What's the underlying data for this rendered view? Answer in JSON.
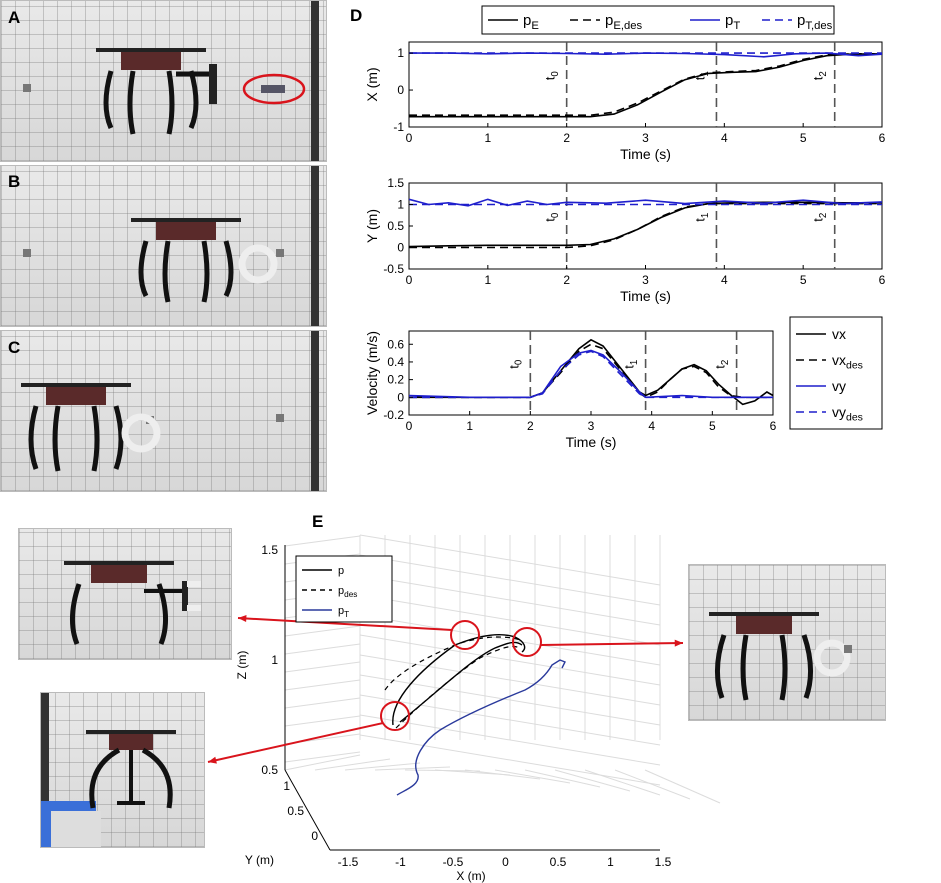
{
  "panel_labels": {
    "a": "A",
    "b": "B",
    "c": "C",
    "d": "D",
    "e": "E"
  },
  "colors": {
    "black": "#000000",
    "blue": "#1f1fcc",
    "blue3d": "#2a3a9c",
    "red": "#d9141c"
  },
  "chart_data": [
    {
      "type": "line",
      "panel": "D",
      "ylabel": "X (m)",
      "xlabel": "Time (s)",
      "xlim": [
        0,
        6
      ],
      "ylim": [
        -1,
        1.3
      ],
      "xticks": [
        "0",
        "1",
        "2",
        "3",
        "4",
        "5",
        "6"
      ],
      "yticks": [
        "-1",
        "0",
        "1"
      ],
      "legend": [
        "p_E",
        "p_E,des",
        "p_T",
        "p_T,des"
      ],
      "markers": [
        {
          "label": "t0",
          "x": 2.0
        },
        {
          "label": "t1",
          "x": 3.9
        },
        {
          "label": "t2",
          "x": 5.4
        }
      ],
      "series": [
        {
          "name": "p_E",
          "style": "solid",
          "color": "black",
          "x": [
            0,
            2,
            2.3,
            2.6,
            2.9,
            3.2,
            3.5,
            3.8,
            4.1,
            4.4,
            4.7,
            5.0,
            5.3,
            5.6,
            6.0
          ],
          "values": [
            -0.72,
            -0.72,
            -0.72,
            -0.65,
            -0.4,
            -0.05,
            0.28,
            0.45,
            0.48,
            0.5,
            0.62,
            0.8,
            0.93,
            0.97,
            0.98
          ]
        },
        {
          "name": "p_E,des",
          "style": "dashed",
          "color": "black",
          "x": [
            0,
            2,
            2.3,
            2.6,
            2.9,
            3.2,
            3.5,
            3.8,
            4.1,
            4.4,
            4.7,
            5.0,
            5.3,
            5.6,
            6.0
          ],
          "values": [
            -0.68,
            -0.68,
            -0.68,
            -0.6,
            -0.35,
            -0.02,
            0.3,
            0.47,
            0.5,
            0.53,
            0.65,
            0.83,
            0.95,
            0.98,
            0.98
          ]
        },
        {
          "name": "p_T",
          "style": "solid",
          "color": "blue",
          "x": [
            0,
            0.5,
            1,
            1.5,
            2,
            2.5,
            3,
            3.5,
            4,
            4.5,
            4.9,
            5.3,
            5.7,
            6.0
          ],
          "values": [
            1.0,
            1.0,
            0.98,
            1.0,
            0.99,
            0.97,
            1.0,
            0.99,
            0.96,
            0.9,
            0.98,
            1.0,
            0.93,
            0.97
          ]
        },
        {
          "name": "p_T,des",
          "style": "dashed",
          "color": "blue",
          "x": [
            0,
            6
          ],
          "values": [
            1.0,
            1.0
          ]
        }
      ]
    },
    {
      "type": "line",
      "panel": "D",
      "ylabel": "Y (m)",
      "xlabel": "Time (s)",
      "xlim": [
        0,
        6
      ],
      "ylim": [
        -0.5,
        1.5
      ],
      "xticks": [
        "0",
        "1",
        "2",
        "3",
        "4",
        "5",
        "6"
      ],
      "yticks": [
        "-0.5",
        "0",
        "0.5",
        "1",
        "1.5"
      ],
      "markers": [
        {
          "label": "t0",
          "x": 2.0
        },
        {
          "label": "t1",
          "x": 3.9
        },
        {
          "label": "t2",
          "x": 5.4
        }
      ],
      "series": [
        {
          "name": "p_E",
          "style": "solid",
          "color": "black",
          "x": [
            0,
            0.5,
            1,
            1.5,
            2,
            2.3,
            2.6,
            2.9,
            3.2,
            3.5,
            3.8,
            4.1,
            4.5,
            5.0,
            5.5,
            6.0
          ],
          "values": [
            0.02,
            0.04,
            0.05,
            0.05,
            0.05,
            0.07,
            0.2,
            0.42,
            0.7,
            0.92,
            1.02,
            1.04,
            1.05,
            1.05,
            1.04,
            1.04
          ]
        },
        {
          "name": "p_E,des",
          "style": "dashed",
          "color": "black",
          "x": [
            0,
            2,
            2.3,
            2.6,
            2.9,
            3.2,
            3.5,
            3.8,
            4.1,
            6.0
          ],
          "values": [
            0.0,
            0.0,
            0.04,
            0.18,
            0.42,
            0.72,
            0.94,
            1.02,
            1.02,
            1.02
          ]
        },
        {
          "name": "p_T",
          "style": "solid",
          "color": "blue",
          "x": [
            0,
            0.25,
            0.5,
            0.75,
            1.0,
            1.25,
            1.5,
            1.75,
            2.0,
            2.5,
            3.0,
            3.5,
            4.0,
            4.5,
            5.0,
            5.5,
            6.0
          ],
          "values": [
            1.12,
            1.0,
            1.04,
            0.97,
            1.12,
            0.98,
            1.08,
            1.0,
            1.05,
            1.03,
            1.1,
            1.02,
            1.08,
            1.03,
            1.1,
            1.02,
            1.06
          ]
        },
        {
          "name": "p_T,des",
          "style": "dashed",
          "color": "blue",
          "x": [
            0,
            6
          ],
          "values": [
            1.0,
            1.0
          ]
        }
      ]
    },
    {
      "type": "line",
      "panel": "D",
      "ylabel": "Velocity (m/s)",
      "xlabel": "Time (s)",
      "xlim": [
        0,
        6
      ],
      "ylim": [
        -0.2,
        0.75
      ],
      "xticks": [
        "0",
        "1",
        "2",
        "3",
        "4",
        "5",
        "6"
      ],
      "yticks": [
        "-0.2",
        "0",
        "0.2",
        "0.4",
        "0.6"
      ],
      "legend": [
        "vx",
        "vx_des",
        "vy",
        "vy_des"
      ],
      "markers": [
        {
          "label": "t0",
          "x": 2.0
        },
        {
          "label": "t1",
          "x": 3.9
        },
        {
          "label": "t2",
          "x": 5.4
        }
      ],
      "series": [
        {
          "name": "vx",
          "style": "solid",
          "color": "black",
          "x": [
            0,
            1,
            2,
            2.2,
            2.5,
            2.8,
            3.0,
            3.2,
            3.5,
            3.8,
            3.9,
            4.1,
            4.3,
            4.5,
            4.7,
            4.9,
            5.1,
            5.3,
            5.5,
            5.7,
            5.9,
            6.0
          ],
          "values": [
            0.0,
            0.0,
            0.0,
            0.05,
            0.3,
            0.55,
            0.65,
            0.58,
            0.32,
            0.06,
            0.02,
            0.08,
            0.2,
            0.32,
            0.37,
            0.3,
            0.15,
            0.03,
            -0.08,
            -0.04,
            0.06,
            0.02
          ]
        },
        {
          "name": "vx_des",
          "style": "dashed",
          "color": "black",
          "x": [
            0,
            2,
            2.2,
            2.5,
            2.8,
            3.0,
            3.2,
            3.5,
            3.8,
            3.9,
            4.1,
            4.3,
            4.5,
            4.7,
            4.9,
            5.1,
            5.3,
            5.5,
            6.0
          ],
          "values": [
            0.0,
            0.0,
            0.05,
            0.28,
            0.52,
            0.6,
            0.55,
            0.3,
            0.05,
            0.0,
            0.06,
            0.2,
            0.32,
            0.35,
            0.28,
            0.12,
            0.02,
            0.0,
            0.0
          ]
        },
        {
          "name": "vy",
          "style": "solid",
          "color": "blue",
          "x": [
            0,
            1,
            2,
            2.2,
            2.5,
            2.8,
            3.0,
            3.2,
            3.5,
            3.8,
            3.9,
            4.5,
            5.0,
            5.5,
            6.0
          ],
          "values": [
            0.02,
            0.0,
            0.0,
            0.05,
            0.35,
            0.5,
            0.53,
            0.48,
            0.28,
            0.06,
            0.0,
            0.02,
            0.0,
            0.0,
            0.0
          ]
        },
        {
          "name": "vy_des",
          "style": "dashed",
          "color": "blue",
          "x": [
            0,
            2,
            2.2,
            2.5,
            2.8,
            3.0,
            3.2,
            3.5,
            3.8,
            3.9,
            6.0
          ],
          "values": [
            0.0,
            0.0,
            0.04,
            0.3,
            0.48,
            0.52,
            0.46,
            0.25,
            0.04,
            0.0,
            0.0
          ]
        }
      ]
    },
    {
      "type": "line",
      "panel": "E",
      "projection": "3d",
      "zlabel": "Z (m)",
      "xlabel": "X (m)",
      "ylabel": "Y (m)",
      "zticks": [
        "0.5",
        "1",
        "1.5"
      ],
      "xticks": [
        "-1.5",
        "-1",
        "-0.5",
        "0",
        "0.5",
        "1",
        "1.5"
      ],
      "yticks": [
        "0",
        "0.5",
        "1"
      ],
      "legend": [
        "p",
        "p_des",
        "p_T"
      ]
    }
  ]
}
